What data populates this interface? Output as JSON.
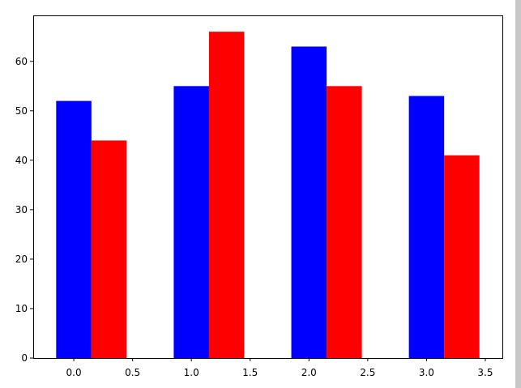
{
  "chart_data": {
    "type": "bar",
    "title": "",
    "xlabel": "",
    "ylabel": "",
    "series": [
      {
        "x": [
          0,
          1,
          2,
          3
        ],
        "values": [
          52,
          55,
          63,
          53
        ],
        "color": "#0000ff"
      },
      {
        "x": [
          0.3,
          1.3,
          2.3,
          3.3
        ],
        "values": [
          44,
          66,
          55,
          41
        ],
        "color": "#ff0000"
      }
    ],
    "bar_width": 0.3,
    "xlim": [
      -0.345,
      3.645
    ],
    "ylim": [
      0,
      69.3
    ],
    "x_ticks": [
      {
        "value": 0.0,
        "label": "0.0"
      },
      {
        "value": 0.5,
        "label": "0.5"
      },
      {
        "value": 1.0,
        "label": "1.0"
      },
      {
        "value": 1.5,
        "label": "1.5"
      },
      {
        "value": 2.0,
        "label": "2.0"
      },
      {
        "value": 2.5,
        "label": "2.5"
      },
      {
        "value": 3.0,
        "label": "3.0"
      },
      {
        "value": 3.5,
        "label": "3.5"
      }
    ],
    "y_ticks": [
      {
        "value": 0,
        "label": "0"
      },
      {
        "value": 10,
        "label": "10"
      },
      {
        "value": 20,
        "label": "20"
      },
      {
        "value": 30,
        "label": "30"
      },
      {
        "value": 40,
        "label": "40"
      },
      {
        "value": 50,
        "label": "50"
      },
      {
        "value": 60,
        "label": "60"
      }
    ],
    "grid": false,
    "legend": "none"
  }
}
